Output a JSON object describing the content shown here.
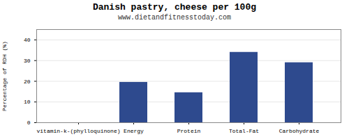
{
  "chart_data": {
    "type": "bar",
    "title": "Danish pastry, cheese per 100g",
    "subtitle": "www.dietandfitnesstoday.com",
    "categories": [
      "vitamin-k-(phylloquinone)",
      "Energy",
      "Protein",
      "Total-Fat",
      "Carbohydrate"
    ],
    "values": [
      0,
      19.5,
      14.5,
      34.0,
      29.0
    ],
    "color": "#2e4a8e",
    "ylabel": "Percentage of RDH (%)",
    "ylim": [
      0,
      45
    ],
    "yticks": [
      0,
      10,
      20,
      30,
      40
    ],
    "grid": true
  }
}
